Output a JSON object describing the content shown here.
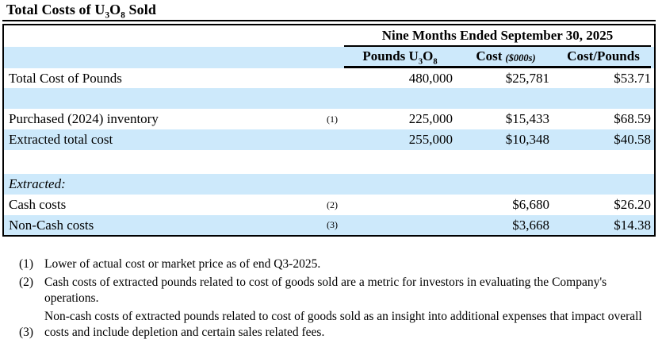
{
  "title": {
    "part1": "Total Costs of U",
    "sub1": "3",
    "part2": "O",
    "sub2": "8",
    "part3": " Sold"
  },
  "table": {
    "period_header": "Nine Months Ended September 30, 2025",
    "col_pounds": {
      "part1": "Pounds U",
      "sub1": "3",
      "part2": "O",
      "sub2": "8"
    },
    "col_cost": {
      "label": "Cost",
      "unit": "($000s)"
    },
    "col_cpp": "Cost/Pounds",
    "rows": [
      {
        "label": "Total Cost of Pounds",
        "note": "",
        "pounds": "480,000",
        "cost": "$25,781",
        "cpp": "$53.71"
      },
      {
        "label": "",
        "note": "",
        "pounds": "",
        "cost": "",
        "cpp": ""
      },
      {
        "label": "Purchased (2024) inventory",
        "note": "(1)",
        "pounds": "225,000",
        "cost": "$15,433",
        "cpp": "$68.59"
      },
      {
        "label": "Extracted total cost",
        "note": "",
        "pounds": "255,000",
        "cost": "$10,348",
        "cpp": "$40.58"
      },
      {
        "label": "",
        "note": "",
        "pounds": "",
        "cost": "",
        "cpp": ""
      },
      {
        "label": "Extracted:",
        "note": "",
        "pounds": "",
        "cost": "",
        "cpp": ""
      },
      {
        "label": "Cash costs",
        "note": "(2)",
        "pounds": "",
        "cost": "$6,680",
        "cpp": "$26.20"
      },
      {
        "label": "Non-Cash costs",
        "note": "(3)",
        "pounds": "",
        "cost": "$3,668",
        "cpp": "$14.38"
      }
    ]
  },
  "footnotes": [
    {
      "marker": "(1)",
      "text": "Lower of actual cost or market price as of end Q3-2025."
    },
    {
      "marker": "(2)",
      "text": "Cash costs of extracted pounds related to cost of goods sold are a metric for investors in evaluating the Company's operations."
    },
    {
      "marker": "(3)",
      "text": "Non-cash costs of extracted pounds related to cost of goods sold as an insight into additional expenses that impact overall costs and include depletion and certain sales related fees."
    }
  ],
  "colors": {
    "stripe": "#cde9fb",
    "border": "#000000",
    "text": "#000000"
  }
}
